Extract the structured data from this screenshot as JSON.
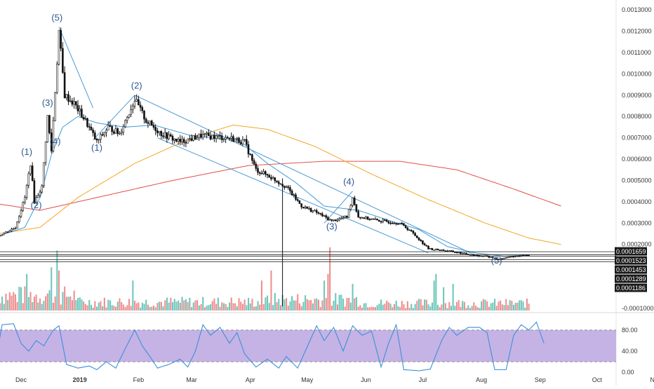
{
  "colors": {
    "background": "#ffffff",
    "up_candle": "#ffffff",
    "down_candle": "#111111",
    "volume_up": "#6fc7bc",
    "volume_down": "#ee9090",
    "ma_blue": "#3f9ad6",
    "ma_orange": "#f5a623",
    "ma_red": "#e0504a",
    "trendline": "#4a9ad6",
    "stoch_fill": "#c5b3e6",
    "stoch_line": "#3f8fd6",
    "wave_label": "#2e5a94",
    "hline_label_bg": "#1a1a1a"
  },
  "chart_data": {
    "type": "candlestick",
    "price_axis": {
      "min": -0.0001,
      "max": 0.00133,
      "ticks": [
        "0.0013000",
        "0.0012000",
        "0.0011000",
        "0.0010000",
        "0.0009000",
        "0.0008000",
        "0.0007000",
        "0.0006000",
        "0.0005000",
        "0.0004000",
        "0.0003000",
        "0.0002000",
        "-0.0001000"
      ]
    },
    "horizontal_levels": [
      {
        "label": "0.0001659",
        "value": 0.0001659
      },
      {
        "label": "0.0001523",
        "value": 0.0001523
      },
      {
        "label": "0.0001453",
        "value": 0.0001453
      },
      {
        "label": "0.0001289",
        "value": 0.0001289
      },
      {
        "label": "0.0001186",
        "value": 0.0001186
      }
    ],
    "x_axis": {
      "labels": [
        {
          "text": "Dec",
          "day": 0,
          "bold": false
        },
        {
          "text": "2019",
          "day": 31,
          "bold": true
        },
        {
          "text": "Feb",
          "day": 62,
          "bold": false
        },
        {
          "text": "Mar",
          "day": 90,
          "bold": false
        },
        {
          "text": "Apr",
          "day": 121,
          "bold": false
        },
        {
          "text": "May",
          "day": 151,
          "bold": false
        },
        {
          "text": "Jun",
          "day": 182,
          "bold": false
        },
        {
          "text": "Jul",
          "day": 212,
          "bold": false
        },
        {
          "text": "Aug",
          "day": 243,
          "bold": false
        },
        {
          "text": "Sep",
          "day": 274,
          "bold": false
        },
        {
          "text": "Oct",
          "day": 304,
          "bold": false
        },
        {
          "text": "Nov",
          "day": 335,
          "bold": false
        }
      ]
    },
    "price_keypoints": [
      {
        "day": -12,
        "price": 0.00024
      },
      {
        "day": -3,
        "price": 0.00028
      },
      {
        "day": 2,
        "price": 0.00042
      },
      {
        "day": 5,
        "price": 0.00058
      },
      {
        "day": 7,
        "price": 0.0004
      },
      {
        "day": 11,
        "price": 0.00047
      },
      {
        "day": 14,
        "price": 0.0008
      },
      {
        "day": 16,
        "price": 0.00064
      },
      {
        "day": 20,
        "price": 0.0012
      },
      {
        "day": 23,
        "price": 0.0009
      },
      {
        "day": 28,
        "price": 0.00086
      },
      {
        "day": 34,
        "price": 0.00078
      },
      {
        "day": 40,
        "price": 0.00068
      },
      {
        "day": 46,
        "price": 0.00075
      },
      {
        "day": 52,
        "price": 0.00072
      },
      {
        "day": 60,
        "price": 0.00088
      },
      {
        "day": 66,
        "price": 0.00078
      },
      {
        "day": 74,
        "price": 0.00072
      },
      {
        "day": 84,
        "price": 0.00068
      },
      {
        "day": 95,
        "price": 0.00071
      },
      {
        "day": 110,
        "price": 0.0007
      },
      {
        "day": 118,
        "price": 0.00068
      },
      {
        "day": 124,
        "price": 0.00055
      },
      {
        "day": 131,
        "price": 0.00052
      },
      {
        "day": 140,
        "price": 0.00047
      },
      {
        "day": 148,
        "price": 0.00038
      },
      {
        "day": 156,
        "price": 0.00035
      },
      {
        "day": 164,
        "price": 0.00031
      },
      {
        "day": 172,
        "price": 0.00033
      },
      {
        "day": 175,
        "price": 0.00042
      },
      {
        "day": 178,
        "price": 0.00033
      },
      {
        "day": 190,
        "price": 0.00031
      },
      {
        "day": 200,
        "price": 0.0003
      },
      {
        "day": 206,
        "price": 0.00026
      },
      {
        "day": 215,
        "price": 0.00018
      },
      {
        "day": 225,
        "price": 0.00017
      },
      {
        "day": 235,
        "price": 0.000155
      },
      {
        "day": 245,
        "price": 0.000145
      },
      {
        "day": 252,
        "price": 0.00013
      },
      {
        "day": 260,
        "price": 0.000145
      },
      {
        "day": 268,
        "price": 0.00015
      }
    ],
    "spike_wick": {
      "day": 138,
      "high": 0.00051,
      "low": -9e-05
    },
    "ma_blue": [
      {
        "day": -12,
        "price": 0.00024
      },
      {
        "day": 2,
        "price": 0.00028
      },
      {
        "day": 10,
        "price": 0.00042
      },
      {
        "day": 16,
        "price": 0.00062
      },
      {
        "day": 22,
        "price": 0.00075
      },
      {
        "day": 30,
        "price": 0.0008
      },
      {
        "day": 40,
        "price": 0.00077
      },
      {
        "day": 55,
        "price": 0.00075
      },
      {
        "day": 70,
        "price": 0.00076
      },
      {
        "day": 90,
        "price": 0.00071
      },
      {
        "day": 115,
        "price": 0.00069
      },
      {
        "day": 130,
        "price": 0.00058
      },
      {
        "day": 145,
        "price": 0.00049
      },
      {
        "day": 160,
        "price": 0.00038
      },
      {
        "day": 178,
        "price": 0.00036
      },
      {
        "day": 195,
        "price": 0.00031
      },
      {
        "day": 210,
        "price": 0.00027
      },
      {
        "day": 225,
        "price": 0.00019
      },
      {
        "day": 240,
        "price": 0.00016
      },
      {
        "day": 255,
        "price": 0.000145
      },
      {
        "day": 268,
        "price": 0.00015
      }
    ],
    "ma_orange": [
      {
        "day": -12,
        "price": 0.00025
      },
      {
        "day": 10,
        "price": 0.00028
      },
      {
        "day": 30,
        "price": 0.00042
      },
      {
        "day": 60,
        "price": 0.00058
      },
      {
        "day": 90,
        "price": 0.0007
      },
      {
        "day": 112,
        "price": 0.00076
      },
      {
        "day": 130,
        "price": 0.00074
      },
      {
        "day": 155,
        "price": 0.00066
      },
      {
        "day": 185,
        "price": 0.00053
      },
      {
        "day": 215,
        "price": 0.00041
      },
      {
        "day": 245,
        "price": 0.0003
      },
      {
        "day": 268,
        "price": 0.00023
      },
      {
        "day": 285,
        "price": 0.0002
      }
    ],
    "ma_red": [
      {
        "day": -12,
        "price": 0.00039
      },
      {
        "day": 10,
        "price": 0.00036
      },
      {
        "day": 40,
        "price": 0.00042
      },
      {
        "day": 80,
        "price": 0.0005
      },
      {
        "day": 120,
        "price": 0.00057
      },
      {
        "day": 160,
        "price": 0.00059
      },
      {
        "day": 200,
        "price": 0.00059
      },
      {
        "day": 230,
        "price": 0.00055
      },
      {
        "day": 260,
        "price": 0.00046
      },
      {
        "day": 285,
        "price": 0.00038
      }
    ],
    "trendlines": [
      {
        "from": {
          "day": 20,
          "price": 0.00122
        },
        "to": {
          "day": 38,
          "price": 0.00084
        }
      },
      {
        "from": {
          "day": 60,
          "price": 0.0009
        },
        "to": {
          "day": 242,
          "price": 0.00014
        }
      },
      {
        "from": {
          "day": 72,
          "price": 0.0007
        },
        "to": {
          "day": 215,
          "price": 0.00016
        }
      },
      {
        "from": {
          "day": 38,
          "price": 0.00069
        },
        "to": {
          "day": 60,
          "price": 0.0009
        }
      },
      {
        "from": {
          "day": 160,
          "price": 0.0003
        },
        "to": {
          "day": 175,
          "price": 0.00045
        }
      }
    ],
    "wave_labels": [
      {
        "text": "(1)",
        "day": 3,
        "price": 0.00062
      },
      {
        "text": "(2)",
        "day": 8,
        "price": 0.00037
      },
      {
        "text": "(3)",
        "day": 14,
        "price": 0.00085
      },
      {
        "text": "(4)",
        "day": 18,
        "price": 0.00067
      },
      {
        "text": "(5)",
        "day": 19,
        "price": 0.00125
      },
      {
        "text": "(1)",
        "day": 40,
        "price": 0.00064
      },
      {
        "text": "(2)",
        "day": 61,
        "price": 0.00093
      },
      {
        "text": "(3)",
        "day": 164,
        "price": 0.00027
      },
      {
        "text": "(4)",
        "day": 173,
        "price": 0.00048
      },
      {
        "text": "(5)",
        "day": 251,
        "price": 0.00011
      }
    ],
    "volume_bursts": [
      {
        "day": 0,
        "height": 0.35,
        "up": true
      },
      {
        "day": 3,
        "height": 0.55,
        "up": true
      },
      {
        "day": 16,
        "height": 0.65,
        "up": true
      },
      {
        "day": 19,
        "height": 0.9,
        "up": true
      },
      {
        "day": 20,
        "height": 0.6,
        "up": false
      },
      {
        "day": 59,
        "height": 0.45,
        "up": true
      },
      {
        "day": 127,
        "height": 0.45,
        "up": false
      },
      {
        "day": 132,
        "height": 0.6,
        "up": false
      },
      {
        "day": 160,
        "height": 0.45,
        "up": true
      },
      {
        "day": 162,
        "height": 0.55,
        "up": false
      },
      {
        "day": 163,
        "height": 0.95,
        "up": false
      },
      {
        "day": 175,
        "height": 0.4,
        "up": true
      },
      {
        "day": 218,
        "height": 0.45,
        "up": true
      },
      {
        "day": 219,
        "height": 0.55,
        "up": true
      },
      {
        "day": 223,
        "height": 0.35,
        "up": true
      },
      {
        "day": 228,
        "height": 0.4,
        "up": true
      }
    ],
    "stochastic": {
      "axis_ticks": [
        "80.00",
        "40.00",
        "0.00"
      ],
      "band_upper": 80,
      "band_lower": 20,
      "keypoints": [
        {
          "day": -12,
          "value": 50
        },
        {
          "day": -10,
          "value": 90
        },
        {
          "day": -4,
          "value": 92
        },
        {
          "day": 0,
          "value": 55
        },
        {
          "day": 4,
          "value": 40
        },
        {
          "day": 8,
          "value": 60
        },
        {
          "day": 12,
          "value": 50
        },
        {
          "day": 17,
          "value": 80
        },
        {
          "day": 20,
          "value": 88
        },
        {
          "day": 24,
          "value": 15
        },
        {
          "day": 30,
          "value": 8
        },
        {
          "day": 36,
          "value": 12
        },
        {
          "day": 40,
          "value": 5
        },
        {
          "day": 45,
          "value": 20
        },
        {
          "day": 50,
          "value": 8
        },
        {
          "day": 55,
          "value": 45
        },
        {
          "day": 60,
          "value": 80
        },
        {
          "day": 64,
          "value": 50
        },
        {
          "day": 68,
          "value": 30
        },
        {
          "day": 72,
          "value": 8
        },
        {
          "day": 78,
          "value": 15
        },
        {
          "day": 84,
          "value": 25
        },
        {
          "day": 88,
          "value": 10
        },
        {
          "day": 92,
          "value": 40
        },
        {
          "day": 96,
          "value": 90
        },
        {
          "day": 100,
          "value": 70
        },
        {
          "day": 105,
          "value": 85
        },
        {
          "day": 110,
          "value": 55
        },
        {
          "day": 114,
          "value": 75
        },
        {
          "day": 118,
          "value": 35
        },
        {
          "day": 124,
          "value": 10
        },
        {
          "day": 130,
          "value": 25
        },
        {
          "day": 136,
          "value": 8
        },
        {
          "day": 140,
          "value": 30
        },
        {
          "day": 146,
          "value": 8
        },
        {
          "day": 150,
          "value": 40
        },
        {
          "day": 156,
          "value": 88
        },
        {
          "day": 160,
          "value": 60
        },
        {
          "day": 165,
          "value": 85
        },
        {
          "day": 170,
          "value": 40
        },
        {
          "day": 175,
          "value": 88
        },
        {
          "day": 180,
          "value": 70
        },
        {
          "day": 185,
          "value": 78
        },
        {
          "day": 190,
          "value": 10
        },
        {
          "day": 194,
          "value": 55
        },
        {
          "day": 198,
          "value": 90
        },
        {
          "day": 202,
          "value": 5
        },
        {
          "day": 210,
          "value": 3
        },
        {
          "day": 216,
          "value": 6
        },
        {
          "day": 222,
          "value": 60
        },
        {
          "day": 226,
          "value": 85
        },
        {
          "day": 230,
          "value": 70
        },
        {
          "day": 236,
          "value": 85
        },
        {
          "day": 242,
          "value": 85
        },
        {
          "day": 246,
          "value": 75
        },
        {
          "day": 250,
          "value": 5
        },
        {
          "day": 256,
          "value": 5
        },
        {
          "day": 260,
          "value": 70
        },
        {
          "day": 264,
          "value": 90
        },
        {
          "day": 268,
          "value": 80
        },
        {
          "day": 272,
          "value": 95
        },
        {
          "day": 276,
          "value": 55
        }
      ]
    }
  }
}
